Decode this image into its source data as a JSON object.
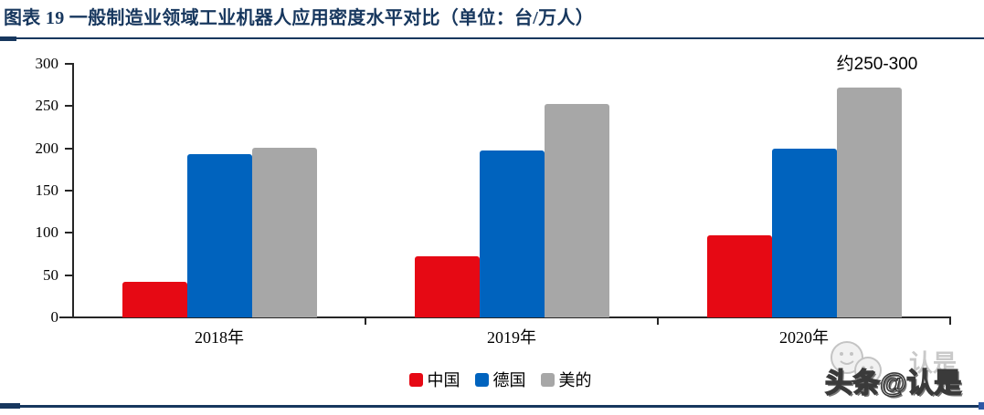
{
  "header": {
    "title": "图表 19 一般制造业领域工业机器人应用密度水平对比（单位：台/万人）"
  },
  "colors": {
    "accent_navy": "#17375E",
    "axis": "#262626",
    "china_red": "#E60914",
    "germany_blue": "#0063BE",
    "third_gray": "#A7A7A7"
  },
  "chart_data": {
    "type": "bar",
    "title": "一般制造业领域工业机器人应用密度水平对比",
    "unit": "台/万人",
    "categories": [
      "2018年",
      "2019年",
      "2020年"
    ],
    "series": [
      {
        "name": "中国",
        "color": "#E60914",
        "values": [
          42,
          72,
          97
        ]
      },
      {
        "name": "德国",
        "color": "#0063BE",
        "values": [
          193,
          197,
          200
        ]
      },
      {
        "name": "美的",
        "color": "#A7A7A7",
        "values": [
          201,
          252,
          272
        ]
      }
    ],
    "ylim": [
      0,
      300
    ],
    "yticks": [
      0,
      50,
      100,
      150,
      200,
      250,
      300
    ],
    "grid": false,
    "legend_position": "bottom-center",
    "annotation": {
      "text": "约250-300",
      "target_series": "美的",
      "target_category": "2020年"
    }
  },
  "watermark": {
    "main_text": "头条@认是",
    "ghost_text": "认是",
    "icon": "smiley-faces-icon"
  }
}
